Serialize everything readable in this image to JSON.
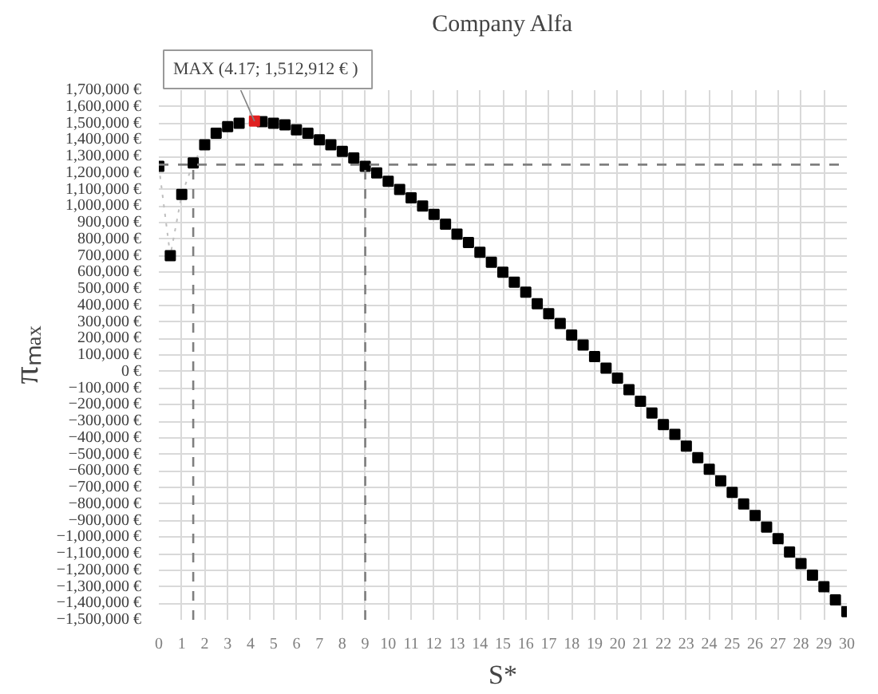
{
  "chart_data": {
    "type": "scatter",
    "title": "Company Alfa",
    "xlabel": "S*",
    "ylabel": "πₘₐₓ",
    "x": [
      0,
      0.5,
      1,
      1.5,
      2,
      2.5,
      3,
      3.5,
      4.5,
      5,
      5.5,
      6,
      6.5,
      7,
      7.5,
      8,
      8.5,
      9,
      9.5,
      10,
      10.5,
      11,
      11.5,
      12,
      12.5,
      13,
      13.5,
      14,
      14.5,
      15,
      15.5,
      16,
      16.5,
      17,
      17.5,
      18,
      18.5,
      19,
      19.5,
      20,
      20.5,
      21,
      21.5,
      22,
      22.5,
      23,
      23.5,
      24,
      24.5,
      25,
      25.5,
      26,
      26.5,
      27,
      27.5,
      28,
      28.5,
      29,
      29.5,
      30
    ],
    "series": [
      {
        "type": "line",
        "color": "#bfbfbf",
        "line_style": "dotted",
        "marker": "none",
        "values": [
          1240000,
          700000,
          1070000,
          1260000,
          1370000,
          1440000,
          1480000,
          1500000,
          1510000,
          1500000,
          1490000,
          1460000,
          1440000,
          1400000,
          1370000,
          1330000,
          1290000,
          1240000,
          1200000,
          1150000,
          1100000,
          1050000,
          1000000,
          950000,
          890000,
          830000,
          780000,
          720000,
          660000,
          600000,
          540000,
          480000,
          410000,
          350000,
          290000,
          220000,
          160000,
          90000,
          20000,
          -40000,
          -110000,
          -180000,
          -250000,
          -320000,
          -380000,
          -450000,
          -520000,
          -590000,
          -660000,
          -730000,
          -800000,
          -870000,
          -940000,
          -1010000,
          -1090000,
          -1160000,
          -1230000,
          -1300000,
          -1380000,
          -1450000
        ]
      },
      {
        "color": "#000000",
        "values": [
          1240000,
          700000,
          1070000,
          1260000,
          1370000,
          1440000,
          1480000,
          1500000,
          1510000,
          1500000,
          1490000,
          1460000,
          1440000,
          1400000,
          1370000,
          1330000,
          1290000,
          1240000,
          1200000,
          1150000,
          1100000,
          1050000,
          1000000,
          950000,
          890000,
          830000,
          780000,
          720000,
          660000,
          600000,
          540000,
          480000,
          410000,
          350000,
          290000,
          220000,
          160000,
          90000,
          20000,
          -40000,
          -110000,
          -180000,
          -250000,
          -320000,
          -380000,
          -450000,
          -520000,
          -590000,
          -660000,
          -730000,
          -800000,
          -870000,
          -940000,
          -1010000,
          -1090000,
          -1160000,
          -1230000,
          -1300000,
          -1380000,
          -1450000
        ]
      },
      {
        "color": "#e02020",
        "x": [
          4.17
        ],
        "values": [
          1512912
        ]
      }
    ],
    "annotations": [
      {
        "text": "MAX (4.17;  1,512,912 € )",
        "x": 4.17,
        "y": 1512912
      }
    ],
    "ref_lines": [
      {
        "axis": "y",
        "value": 1250000,
        "color": "#7f7f7f",
        "line_style": "dashed"
      },
      {
        "axis": "x",
        "value": 1.5,
        "color": "#7f7f7f",
        "line_style": "dashed"
      },
      {
        "axis": "x",
        "value": 9,
        "color": "#7f7f7f",
        "line_style": "dashed"
      }
    ],
    "xlim": [
      0,
      30
    ],
    "xticks": [
      0,
      1,
      2,
      3,
      4,
      5,
      6,
      7,
      8,
      9,
      10,
      11,
      12,
      13,
      14,
      15,
      16,
      17,
      18,
      19,
      20,
      21,
      22,
      23,
      24,
      25,
      26,
      27,
      28,
      29,
      30
    ],
    "ylim": [
      -1500000,
      1700000
    ],
    "yticks": [
      {
        "value": -1500000,
        "label": "−1,500,000 €"
      },
      {
        "value": -1400000,
        "label": "−1,400,000 €"
      },
      {
        "value": -1300000,
        "label": "−1,300,000 €"
      },
      {
        "value": -1200000,
        "label": "−1,200,000 €"
      },
      {
        "value": -1100000,
        "label": "−1,100,000 €"
      },
      {
        "value": -1000000,
        "label": "−1,000,000 €"
      },
      {
        "value": -900000,
        "label": "−900,000 €"
      },
      {
        "value": -800000,
        "label": "−800,000 €"
      },
      {
        "value": -700000,
        "label": "−700,000 €"
      },
      {
        "value": -600000,
        "label": "−600,000 €"
      },
      {
        "value": -500000,
        "label": "−500,000 €"
      },
      {
        "value": -400000,
        "label": "−400,000 €"
      },
      {
        "value": -300000,
        "label": "−300,000 €"
      },
      {
        "value": -200000,
        "label": "−200,000 €"
      },
      {
        "value": -100000,
        "label": "−100,000 €"
      },
      {
        "value": 0,
        "label": "0 €"
      },
      {
        "value": 100000,
        "label": "100,000 €"
      },
      {
        "value": 200000,
        "label": "200,000 €"
      },
      {
        "value": 300000,
        "label": "300,000 €"
      },
      {
        "value": 400000,
        "label": "400,000 €"
      },
      {
        "value": 500000,
        "label": "500,000 €"
      },
      {
        "value": 600000,
        "label": "600,000 €"
      },
      {
        "value": 700000,
        "label": "700,000 €"
      },
      {
        "value": 800000,
        "label": "800,000 €"
      },
      {
        "value": 900000,
        "label": "900,000 €"
      },
      {
        "value": 1000000,
        "label": "1,000,000 €"
      },
      {
        "value": 1100000,
        "label": "1,100,000 €"
      },
      {
        "value": 1200000,
        "label": "1,200,000 €"
      },
      {
        "value": 1300000,
        "label": "1,300,000 €"
      },
      {
        "value": 1400000,
        "label": "1,400,000 €"
      },
      {
        "value": 1500000,
        "label": "1,500,000 €"
      },
      {
        "value": 1600000,
        "label": "1,600,000 €"
      },
      {
        "value": 1700000,
        "label": "1,700,000 €"
      }
    ],
    "grid": true,
    "marker": "square"
  }
}
